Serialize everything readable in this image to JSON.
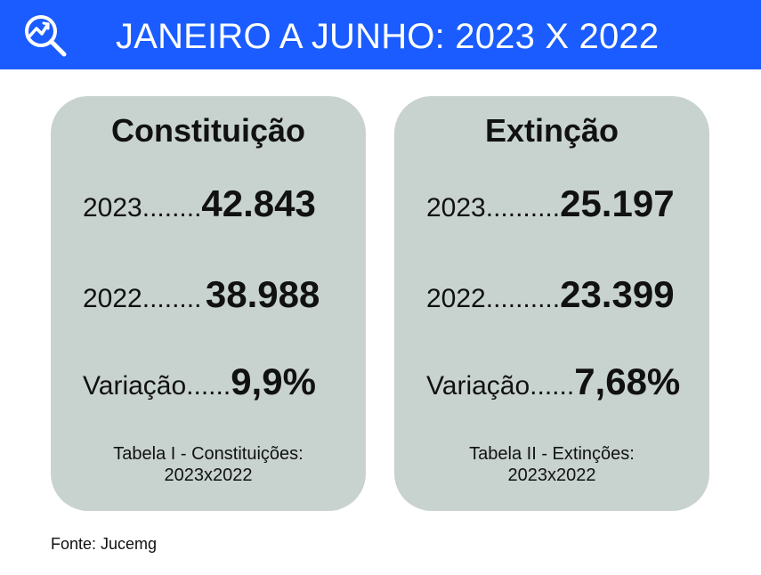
{
  "header": {
    "title": "JANEIRO A JUNHO: 2023 X 2022",
    "icon": "chart-magnifier-icon",
    "background": "#1a5cff"
  },
  "cards": [
    {
      "title": "Constituição",
      "rows": [
        {
          "label": "2023........",
          "value": "42.843"
        },
        {
          "label": "2022........",
          "value": "38.988"
        },
        {
          "label": "Variação......",
          "value": "9,9%"
        }
      ],
      "caption_line1": "Tabela I - Constituições:",
      "caption_line2": "2023x2022"
    },
    {
      "title": "Extinção",
      "rows": [
        {
          "label": "2023..........",
          "value": "25.197"
        },
        {
          "label": "2022..........",
          "value": "23.399"
        },
        {
          "label": "Variação......",
          "value": "7,68%"
        }
      ],
      "caption_line1": "Tabela II - Extinções:",
      "caption_line2": "2023x2022"
    }
  ],
  "source": "Fonte: Jucemg",
  "colors": {
    "card_background": "#c8d3d0",
    "text": "#111111"
  }
}
